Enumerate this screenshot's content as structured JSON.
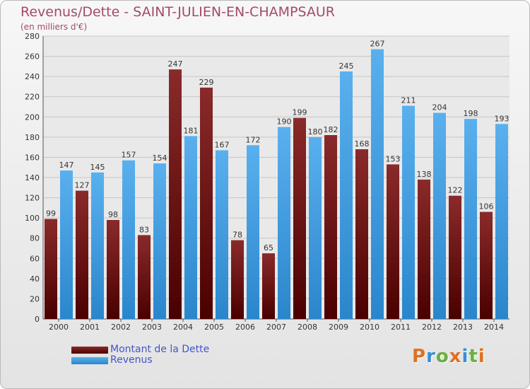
{
  "chart_data": {
    "type": "bar",
    "title": "Revenus/Dette - SAINT-JULIEN-EN-CHAMPSAUR",
    "subtitle": "(en milliers d'€)",
    "categories": [
      "2000",
      "2001",
      "2002",
      "2003",
      "2004",
      "2005",
      "2006",
      "2007",
      "2008",
      "2009",
      "2010",
      "2011",
      "2012",
      "2013",
      "2014"
    ],
    "series": [
      {
        "name": "Montant de la Dette",
        "color": "#6e1414",
        "values": [
          99,
          127,
          98,
          83,
          247,
          229,
          78,
          65,
          199,
          182,
          168,
          153,
          138,
          122,
          106
        ]
      },
      {
        "name": "Revenus",
        "color": "#3d9be0",
        "values": [
          147,
          145,
          157,
          154,
          181,
          167,
          172,
          190,
          180,
          245,
          267,
          211,
          204,
          198,
          193
        ]
      }
    ],
    "ylim": [
      0,
      280
    ],
    "yticks": [
      0,
      20,
      40,
      60,
      80,
      100,
      120,
      140,
      160,
      180,
      200,
      220,
      240,
      260,
      280
    ],
    "grid": true,
    "legend_position": "bottom-left"
  },
  "legend": {
    "items": [
      {
        "label": "Montant de la Dette",
        "color": "#6e1414"
      },
      {
        "label": "Revenus",
        "color": "#3d9be0"
      }
    ]
  },
  "logo": {
    "text": "Proxiti"
  }
}
